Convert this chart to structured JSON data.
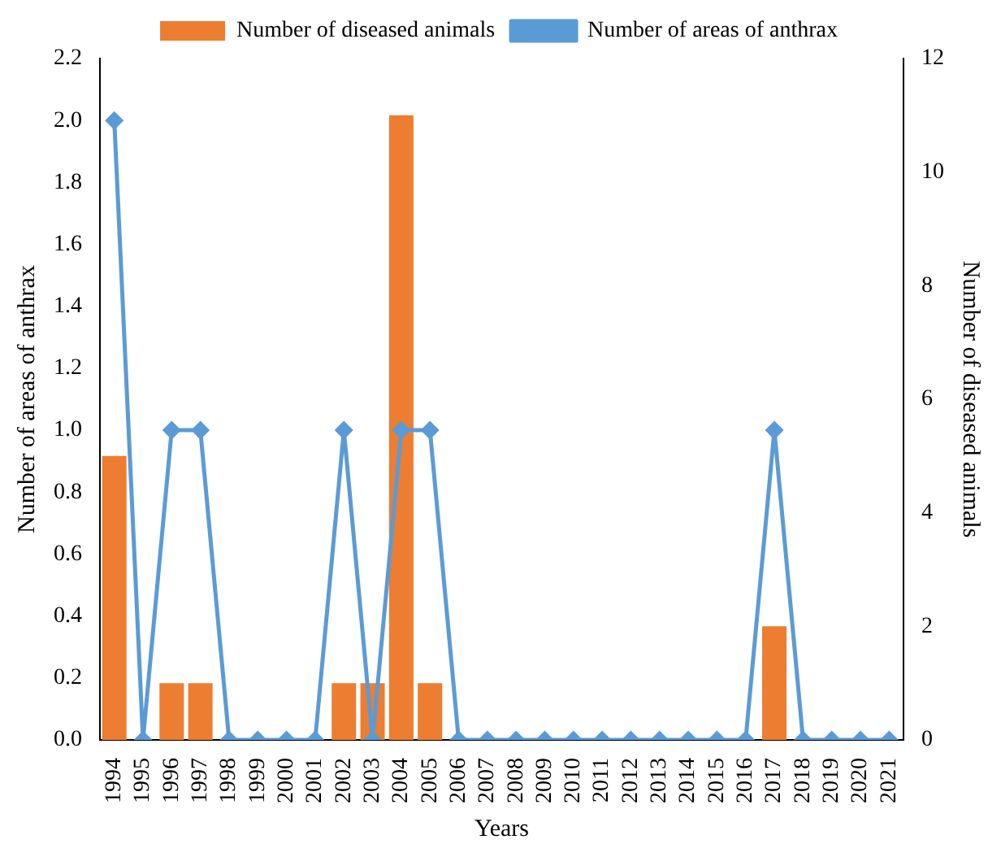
{
  "chart_data": {
    "type": "bar",
    "xlabel": "Years",
    "ylabel": "Number of areas of anthrax",
    "y2label": "Number of diseased animals",
    "categories": [
      "1994",
      "1995",
      "1996",
      "1997",
      "1998",
      "1999",
      "2000",
      "2001",
      "2002",
      "2003",
      "2004",
      "2005",
      "2006",
      "2007",
      "2008",
      "2009",
      "2010",
      "2011",
      "2012",
      "2013",
      "2014",
      "2015",
      "2016",
      "2017",
      "2018",
      "2019",
      "2020",
      "2021"
    ],
    "series": [
      {
        "name": "Number of diseased animals",
        "axis": "y2",
        "color": "#ed7d31",
        "values": [
          5,
          0,
          1,
          1,
          0,
          0,
          0,
          0,
          1,
          1,
          11,
          1,
          0,
          0,
          0,
          0,
          0,
          0,
          0,
          0,
          0,
          0,
          0,
          2,
          0,
          0,
          0,
          0
        ]
      },
      {
        "name": "Number of areas of anthrax",
        "type": "line",
        "axis": "y",
        "color": "#5b9bd5",
        "marker": "diamond",
        "values": [
          2,
          0,
          1,
          1,
          0,
          0,
          0,
          0,
          1,
          0,
          1,
          1,
          0,
          0,
          0,
          0,
          0,
          0,
          0,
          0,
          0,
          0,
          0,
          1,
          0,
          0,
          0,
          0
        ]
      }
    ],
    "ylim": [
      0,
      2.2
    ],
    "yticks": [
      {
        "value": 0,
        "label": "0.0"
      },
      {
        "value": 0.2,
        "label": "0.2"
      },
      {
        "value": 0.4,
        "label": "0.4"
      },
      {
        "value": 0.6,
        "label": "0.6"
      },
      {
        "value": 0.8,
        "label": "0.8"
      },
      {
        "value": 1,
        "label": "1.0"
      },
      {
        "value": 1.2,
        "label": "1.2"
      },
      {
        "value": 1.4,
        "label": "1.4"
      },
      {
        "value": 1.6,
        "label": "1.6"
      },
      {
        "value": 1.8,
        "label": "1.8"
      },
      {
        "value": 2,
        "label": "2.0"
      },
      {
        "value": 2.2,
        "label": "2.2"
      }
    ],
    "y2lim": [
      0,
      12
    ],
    "y2ticks": [
      0,
      2,
      4,
      6,
      8,
      10,
      12
    ],
    "legend": "top",
    "grid": false
  }
}
